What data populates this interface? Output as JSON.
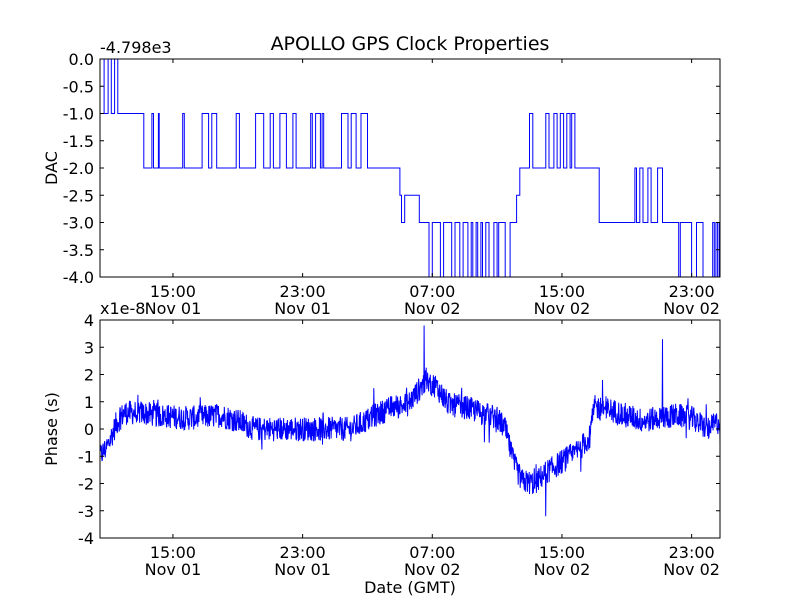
{
  "figure": {
    "title": "APOLLO GPS Clock Properties"
  },
  "chart_data": [
    {
      "type": "line",
      "ylabel": "DAC",
      "offset_label": "-4.798e3",
      "ylim": [
        -4.0,
        0.0
      ],
      "yticks": [
        "0.0",
        "-0.5",
        "-1.0",
        "-1.5",
        "-2.0",
        "-2.5",
        "-3.0",
        "-3.5",
        "-4.0"
      ],
      "xlim_hours": [
        10.5,
        48.75
      ],
      "xticks": [
        {
          "time": "15:00",
          "date": "Nov 01"
        },
        {
          "time": "23:00",
          "date": "Nov 01"
        },
        {
          "time": "07:00",
          "date": "Nov 02"
        },
        {
          "time": "15:00",
          "date": "Nov 02"
        },
        {
          "time": "23:00",
          "date": "Nov 02"
        }
      ],
      "series": [
        {
          "color": "#0000ff",
          "levels": [
            [
              10.5,
              0.0
            ],
            [
              10.75,
              -1.0
            ],
            [
              11.0,
              0.0
            ],
            [
              11.2,
              -1.0
            ],
            [
              11.4,
              0.0
            ],
            [
              11.6,
              -1.0
            ],
            [
              13.2,
              -2.0
            ],
            [
              13.7,
              -1.0
            ],
            [
              13.8,
              -2.0
            ],
            [
              14.1,
              -1.0
            ],
            [
              14.15,
              -2.0
            ],
            [
              15.6,
              -1.0
            ],
            [
              15.7,
              -2.0
            ],
            [
              16.8,
              -1.0
            ],
            [
              17.2,
              -2.0
            ],
            [
              17.4,
              -1.0
            ],
            [
              17.7,
              -2.0
            ],
            [
              18.9,
              -1.0
            ],
            [
              19.1,
              -2.0
            ],
            [
              20.1,
              -1.0
            ],
            [
              20.6,
              -2.0
            ],
            [
              21.0,
              -1.0
            ],
            [
              21.2,
              -2.0
            ],
            [
              21.6,
              -1.0
            ],
            [
              22.0,
              -2.0
            ],
            [
              22.4,
              -1.0
            ],
            [
              22.6,
              -2.0
            ],
            [
              23.5,
              -1.0
            ],
            [
              23.6,
              -2.0
            ],
            [
              23.8,
              -1.0
            ],
            [
              24.1,
              -2.0
            ],
            [
              24.2,
              -1.0
            ],
            [
              24.3,
              -2.0
            ],
            [
              25.4,
              -1.0
            ],
            [
              25.8,
              -2.0
            ],
            [
              26.0,
              -1.0
            ],
            [
              26.3,
              -2.0
            ],
            [
              26.6,
              -1.0
            ],
            [
              27.0,
              -2.0
            ],
            [
              29.0,
              -2.5
            ],
            [
              29.1,
              -3.0
            ],
            [
              29.3,
              -2.5
            ],
            [
              30.2,
              -3.0
            ],
            [
              30.8,
              -4.0
            ],
            [
              31.0,
              -3.0
            ],
            [
              31.5,
              -4.0
            ],
            [
              31.7,
              -3.0
            ],
            [
              32.2,
              -4.0
            ],
            [
              32.4,
              -3.0
            ],
            [
              32.7,
              -4.0
            ],
            [
              32.9,
              -3.0
            ],
            [
              33.2,
              -4.0
            ],
            [
              33.4,
              -3.0
            ],
            [
              33.5,
              -4.0
            ],
            [
              33.7,
              -3.0
            ],
            [
              33.8,
              -4.0
            ],
            [
              34.0,
              -3.0
            ],
            [
              34.1,
              -4.0
            ],
            [
              34.3,
              -3.0
            ],
            [
              34.5,
              -4.0
            ],
            [
              34.8,
              -3.0
            ],
            [
              35.0,
              -4.0
            ],
            [
              35.1,
              -3.0
            ],
            [
              35.5,
              -4.0
            ],
            [
              35.8,
              -3.0
            ],
            [
              36.2,
              -2.5
            ],
            [
              36.4,
              -2.0
            ],
            [
              37.0,
              -1.0
            ],
            [
              37.2,
              -2.0
            ],
            [
              38.0,
              -1.0
            ],
            [
              38.2,
              -2.0
            ],
            [
              38.5,
              -1.0
            ],
            [
              38.7,
              -2.0
            ],
            [
              38.9,
              -1.0
            ],
            [
              39.1,
              -2.0
            ],
            [
              39.3,
              -1.0
            ],
            [
              39.5,
              -2.0
            ],
            [
              39.6,
              -1.0
            ],
            [
              39.8,
              -2.0
            ],
            [
              41.3,
              -3.0
            ],
            [
              43.5,
              -2.0
            ],
            [
              43.6,
              -3.0
            ],
            [
              43.8,
              -2.0
            ],
            [
              44.0,
              -3.0
            ],
            [
              44.3,
              -2.0
            ],
            [
              44.5,
              -3.0
            ],
            [
              44.9,
              -2.0
            ],
            [
              45.2,
              -3.0
            ],
            [
              46.2,
              -4.0
            ],
            [
              46.3,
              -3.0
            ],
            [
              47.0,
              -4.0
            ],
            [
              47.3,
              -3.0
            ],
            [
              47.7,
              -4.0
            ],
            [
              48.3,
              -3.0
            ],
            [
              48.4,
              -4.0
            ],
            [
              48.5,
              -3.0
            ],
            [
              48.6,
              -4.0
            ],
            [
              48.7,
              -3.0
            ]
          ]
        }
      ]
    },
    {
      "type": "line",
      "ylabel": "Phase (s)",
      "xlabel": "Date (GMT)",
      "offset_label": "x1e-8",
      "ylim": [
        -4,
        4
      ],
      "yticks": [
        "4",
        "3",
        "2",
        "1",
        "0",
        "-1",
        "-2",
        "-3",
        "-4"
      ],
      "xlim_hours": [
        10.5,
        48.75
      ],
      "xticks": [
        {
          "time": "15:00",
          "date": "Nov 01"
        },
        {
          "time": "23:00",
          "date": "Nov 01"
        },
        {
          "time": "07:00",
          "date": "Nov 02"
        },
        {
          "time": "15:00",
          "date": "Nov 02"
        },
        {
          "time": "23:00",
          "date": "Nov 02"
        }
      ],
      "series": [
        {
          "color": "#0000ff",
          "trend": [
            [
              10.5,
              -1.0
            ],
            [
              11.0,
              -0.6
            ],
            [
              11.5,
              0.2
            ],
            [
              12.0,
              0.6
            ],
            [
              13.0,
              0.6
            ],
            [
              14.0,
              0.5
            ],
            [
              16.0,
              0.4
            ],
            [
              18.0,
              0.5
            ],
            [
              19.0,
              0.3
            ],
            [
              20.0,
              0.0
            ],
            [
              22.0,
              0.0
            ],
            [
              24.0,
              0.0
            ],
            [
              26.0,
              0.0
            ],
            [
              27.5,
              0.5
            ],
            [
              28.5,
              0.8
            ],
            [
              29.5,
              0.9
            ],
            [
              30.5,
              1.7
            ],
            [
              31.2,
              1.6
            ],
            [
              32.0,
              0.9
            ],
            [
              33.0,
              0.8
            ],
            [
              34.0,
              0.6
            ],
            [
              35.0,
              0.4
            ],
            [
              35.5,
              0.0
            ],
            [
              36.0,
              -1.2
            ],
            [
              36.5,
              -1.9
            ],
            [
              37.3,
              -2.0
            ],
            [
              38.0,
              -1.6
            ],
            [
              39.0,
              -1.2
            ],
            [
              40.0,
              -0.8
            ],
            [
              40.7,
              -0.3
            ],
            [
              41.0,
              0.8
            ],
            [
              42.0,
              0.7
            ],
            [
              43.0,
              0.5
            ],
            [
              44.0,
              0.3
            ],
            [
              45.0,
              0.4
            ],
            [
              46.0,
              0.5
            ],
            [
              47.0,
              0.4
            ],
            [
              48.0,
              0.0
            ],
            [
              48.75,
              0.3
            ]
          ],
          "noise_amplitude": 0.45,
          "spikes": [
            [
              30.5,
              3.8
            ],
            [
              41.5,
              1.8
            ],
            [
              45.2,
              3.3
            ],
            [
              38.0,
              -3.2
            ],
            [
              27.4,
              1.5
            ]
          ]
        }
      ]
    }
  ]
}
